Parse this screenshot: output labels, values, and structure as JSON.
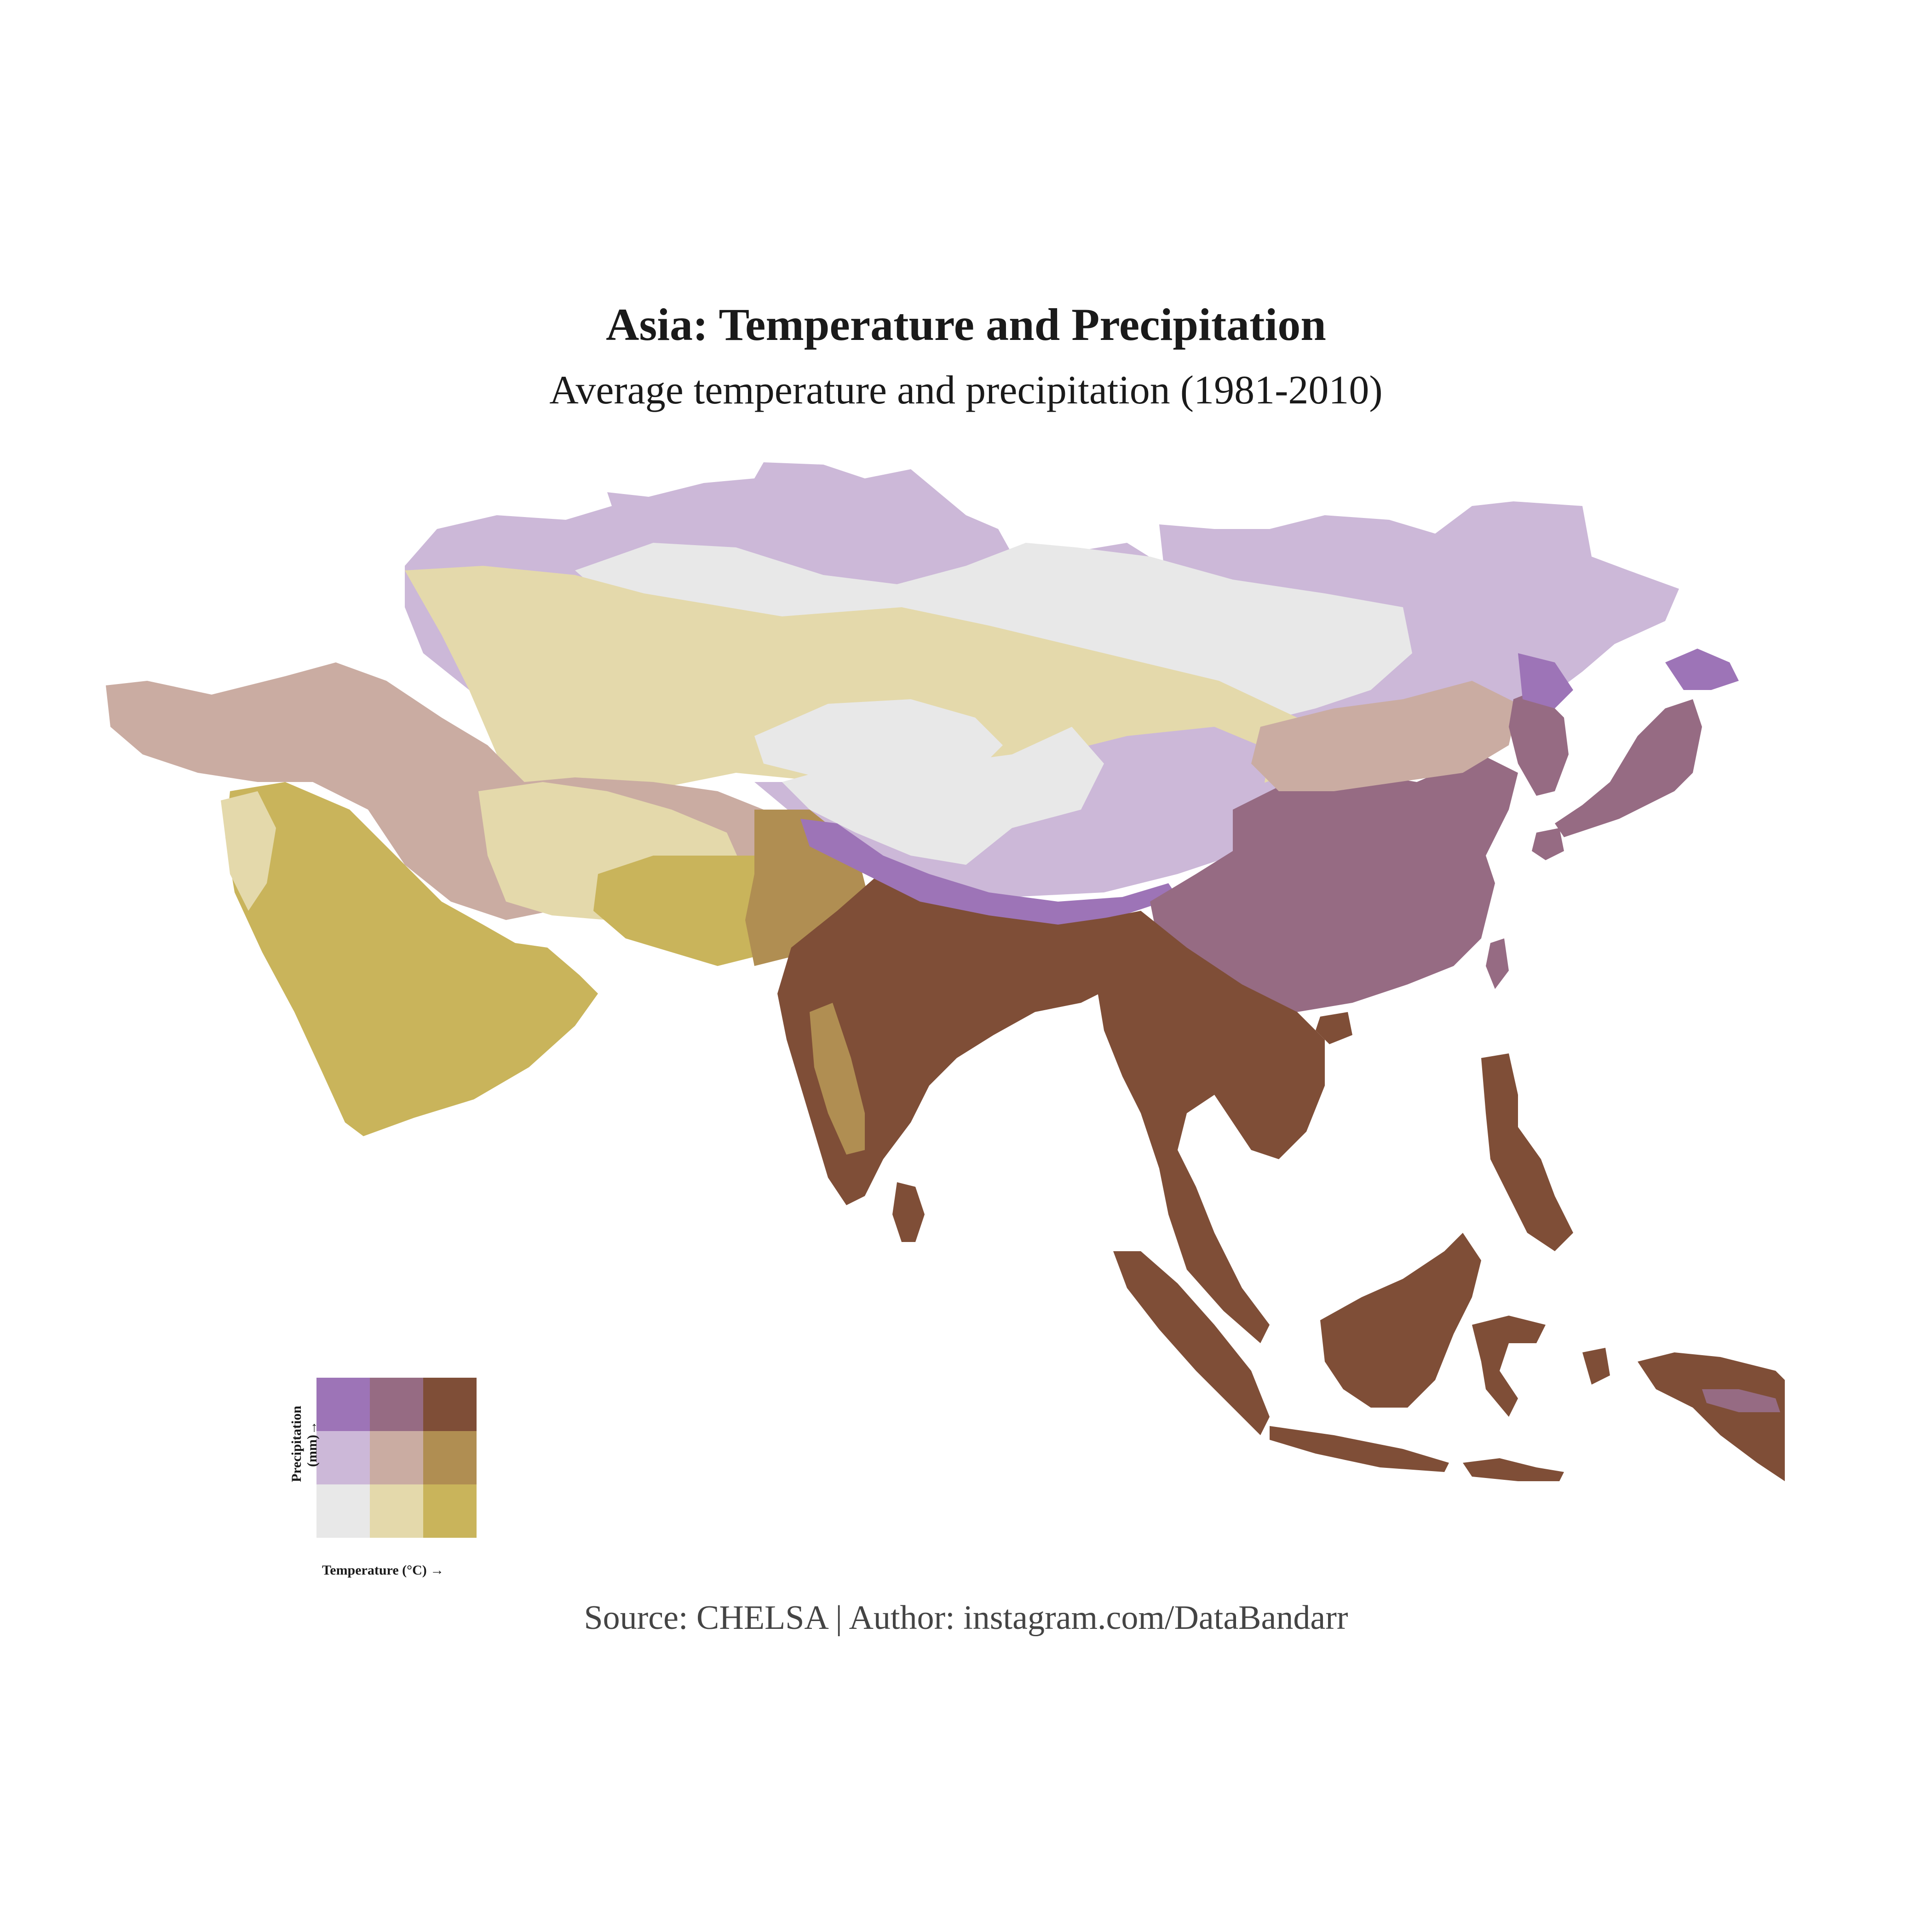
{
  "title": "Asia: Temperature and Precipitation",
  "subtitle": "Average temperature and precipitation (1981-2010)",
  "caption": "Source: CHELSA | Author: instagram.com/DataBandarr",
  "legend": {
    "x_label": "Temperature (°C) →",
    "y_label_line1": "Precipitation",
    "y_label_line2": "(mm)→",
    "grid": [
      [
        "#9d74b7",
        "#966b83",
        "#7f4e37"
      ],
      [
        "#ccb8d8",
        "#caaca2",
        "#b08e52"
      ],
      [
        "#e8e8e8",
        "#e4d9ab",
        "#c9b45b"
      ]
    ]
  },
  "colors": {
    "cold_dry": "#e8e8e8",
    "cold_mid": "#ccb8d8",
    "cold_wet": "#9d74b7",
    "mild_dry": "#e4d9ab",
    "mild_mid": "#caaca2",
    "mild_wet": "#966b83",
    "hot_dry": "#c9b45b",
    "hot_mid": "#b08e52",
    "hot_wet": "#7f4e37"
  }
}
